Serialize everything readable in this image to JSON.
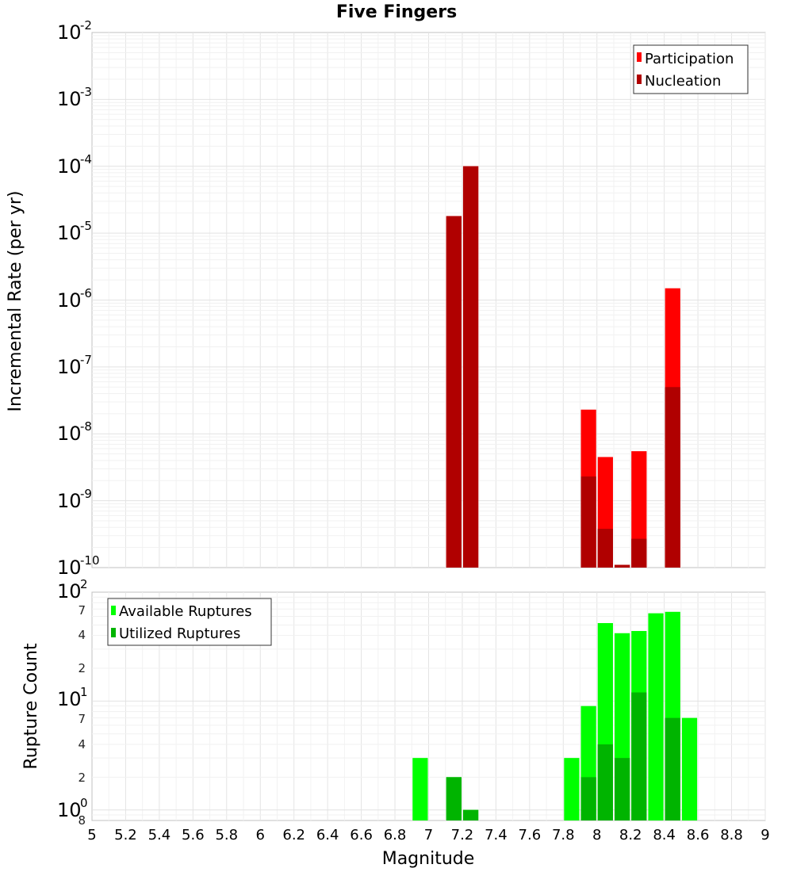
{
  "chart_data": [
    {
      "type": "bar",
      "title": "Five Fingers",
      "xlabel": "",
      "ylabel": "Incremental Rate (per yr)",
      "yscale": "log",
      "ylim": [
        1e-10,
        0.01
      ],
      "xlim": [
        5,
        9
      ],
      "bar_width": 0.1,
      "grid": true,
      "legend_position": "top-right",
      "series": [
        {
          "name": "Participation",
          "color": "#ff0000",
          "x": [
            7.15,
            7.25,
            7.95,
            8.05,
            8.15,
            8.25,
            8.45
          ],
          "values": [
            1.8e-05,
            0.0001,
            2.3e-08,
            4.5e-09,
            1.1e-10,
            5.5e-09,
            1.5e-06
          ]
        },
        {
          "name": "Nucleation",
          "color": "#b00000",
          "x": [
            7.15,
            7.25,
            7.95,
            8.05,
            8.15,
            8.25,
            8.45
          ],
          "values": [
            1.8e-05,
            0.0001,
            2.3e-09,
            3.8e-10,
            1.1e-10,
            2.7e-10,
            5e-08
          ]
        }
      ]
    },
    {
      "type": "bar",
      "title": "",
      "xlabel": "Magnitude",
      "ylabel": "Rupture Count",
      "yscale": "log",
      "ylim": [
        0.8,
        100
      ],
      "xlim": [
        5,
        9
      ],
      "bar_width": 0.1,
      "grid": true,
      "legend_position": "top-left",
      "x_ticks": [
        "5",
        "5.2",
        "5.4",
        "5.6",
        "5.8",
        "6",
        "6.2",
        "6.4",
        "6.6",
        "6.8",
        "7",
        "7.2",
        "7.4",
        "7.6",
        "7.8",
        "8",
        "8.2",
        "8.4",
        "8.6",
        "8.8",
        "9"
      ],
      "series": [
        {
          "name": "Available Ruptures",
          "color": "#00ff00",
          "x": [
            6.95,
            7.15,
            7.25,
            7.85,
            7.95,
            8.05,
            8.15,
            8.25,
            8.35,
            8.45,
            8.55
          ],
          "values": [
            3,
            2,
            1,
            3,
            9,
            52,
            42,
            44,
            64,
            66,
            7
          ]
        },
        {
          "name": "Utilized Ruptures",
          "color": "#00b400",
          "x": [
            7.15,
            7.25,
            7.95,
            8.05,
            8.15,
            8.25,
            8.45
          ],
          "values": [
            2,
            1,
            2,
            4,
            3,
            12,
            7
          ]
        }
      ]
    }
  ],
  "top_axis": {
    "y_tick_exponents": [
      "-2",
      "-3",
      "-4",
      "-5",
      "-6",
      "-7",
      "-8",
      "-9",
      "-10"
    ]
  },
  "bottom_axis": {
    "y_major": [
      {
        "base": "10",
        "exp": "2"
      },
      {
        "base": "10",
        "exp": "1"
      },
      {
        "base": "10",
        "exp": "0"
      }
    ],
    "y_minor_labels": [
      "7",
      "4",
      "2",
      "7",
      "4",
      "2",
      "8"
    ]
  }
}
